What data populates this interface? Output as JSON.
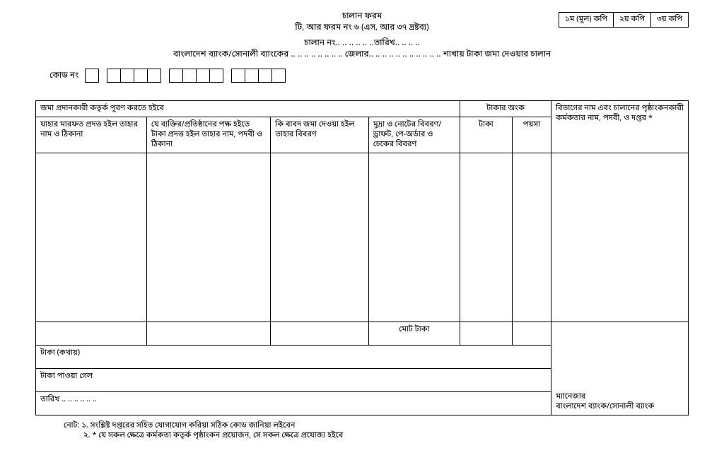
{
  "header": {
    "title": "চালান ফরম",
    "subtitle": "টি, আর ফরম নং ৬ (এস, আর ৩৭ দ্রষ্টব্য)",
    "challan_line": "চালান নং.. .. .. .. .. ..তারিখ.. .. .. ..",
    "bank_line": "বাংলাদেশ ব্যাংক/সোনালী ব্যাংকের .. .. .. .. .. .. .. .. জেলার.. .. .. .. .. .. .. .. .. .. ..  শাখায় টাকা জমা দেওয়ার চালান",
    "code_label": "কোড নং"
  },
  "copies": {
    "c1": "১ম (মূল) কপি",
    "c2": "২য় কপি",
    "c3": "৩য় কপি"
  },
  "table": {
    "section_title": "জমা প্রদানকারী কতৃর্ক পূরণ করতে হইবে",
    "h1": "যাহার মারফত প্রদত্ত হইল তাহার নাম ও ঠিকানা",
    "h2": "যে ব্যক্তির/প্রতিষ্ঠানের পক্ষ হইতে টাকা প্রদত্ত হইল তাহার নাম, পদবী ও ঠিকানা",
    "h3": "কি বাবদ জমা দেওয়া হইল তাহার বিবরণ",
    "h4": "মুদ্রা ও নোটের বিবরণ/ড্রাফট, পে-অর্ডার ও চেকের বিবরণ",
    "h5": "টাকার অংক",
    "h5a": "টাকা",
    "h5b": "পয়সা",
    "h6": "বিভাগের নাম এবং চালানের পৃষ্ঠাংকনকারী কর্মকতার নাম, পদবী, ও দপ্তর *",
    "total": "মোট টাকা",
    "words": "টাকা (কথায়)",
    "received": "টাকা পাওয়া গেল",
    "date": "তারিখ .. .. .. .. .. ..",
    "manager1": "ম্যানেজার",
    "manager2": "বাংলাদেশ ব্যাংক/সোনালী ব্যাংক"
  },
  "notes": {
    "n1": "নোট: ১. সংশ্লিষ্ট দপ্তরের সহিত যোগাযোগ করিয়া সঠিক কোড জানিয়া লইবেন",
    "n2": "২. * যে সকল ক্ষেত্রে কর্মকতা কতৃর্ক পৃষ্ঠাংকন প্রয়োজন, সে সকল ক্ষেত্রে প্রযোজ্য হইবে"
  },
  "layout": {
    "code_groups": [
      1,
      4,
      4,
      4
    ],
    "col_widths": [
      "17%",
      "19%",
      "15%",
      "14%",
      "8%",
      "6%",
      "21%"
    ]
  }
}
